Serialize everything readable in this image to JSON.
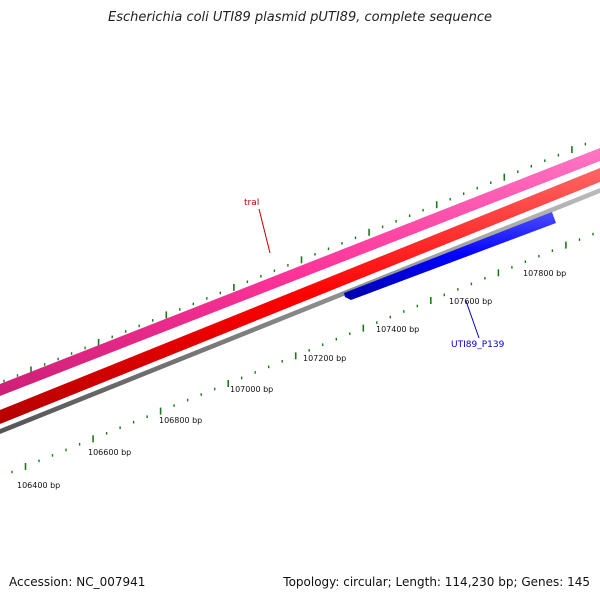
{
  "title": "Escherichia coli UTI89 plasmid pUTI89, complete sequence",
  "footer": {
    "accession": "Accession: NC_007941",
    "summary": "Topology: circular; Length: 114,230 bp; Genes: 145"
  },
  "tracks": {
    "outer_feature": {
      "color": "#ff3399"
    },
    "middle_feature": {
      "color": "#ff0000"
    },
    "backbone": {
      "color": "#888888"
    },
    "inner_feature": {
      "color": "#0000ff"
    },
    "ticks": {
      "color": "#1a7a1a"
    }
  },
  "genes": [
    {
      "name": "traI",
      "color": "#cc0000"
    },
    {
      "name": "UTI89_P139",
      "color": "#0000cc"
    }
  ],
  "scale_labels": [
    "106400 bp",
    "106600 bp",
    "106800 bp",
    "107000 bp",
    "107200 bp",
    "107400 bp",
    "107600 bp",
    "107800 bp"
  ]
}
